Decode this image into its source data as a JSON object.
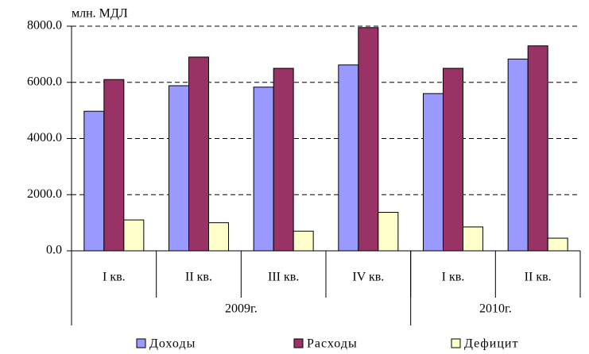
{
  "chart_data": {
    "type": "bar",
    "y_label": "млн. МДЛ",
    "categories": [
      "I кв.",
      "II кв.",
      "III кв.",
      "IV кв.",
      "I кв.",
      "II кв."
    ],
    "groups": [
      {
        "label": "2009г.",
        "count": 4
      },
      {
        "label": "2010г.",
        "count": 2
      }
    ],
    "series": [
      {
        "name": "Доходы",
        "color": "#9999ff",
        "values": [
          4970,
          5880,
          5830,
          6620,
          5600,
          6830
        ]
      },
      {
        "name": "Расходы",
        "color": "#993366",
        "values": [
          6100,
          6900,
          6500,
          7950,
          6500,
          7300
        ]
      },
      {
        "name": "Дефицит",
        "color": "#ffffcc",
        "values": [
          1100,
          1000,
          700,
          1370,
          850,
          450
        ]
      }
    ],
    "ylim": [
      0,
      8000
    ],
    "yticks": [
      {
        "value": 0,
        "label": "0.0"
      },
      {
        "value": 2000,
        "label": "2000.0"
      },
      {
        "value": 4000,
        "label": "4000.0"
      },
      {
        "value": 6000,
        "label": "6000.0"
      },
      {
        "value": 8000,
        "label": "8000.0"
      }
    ],
    "grid": true
  }
}
